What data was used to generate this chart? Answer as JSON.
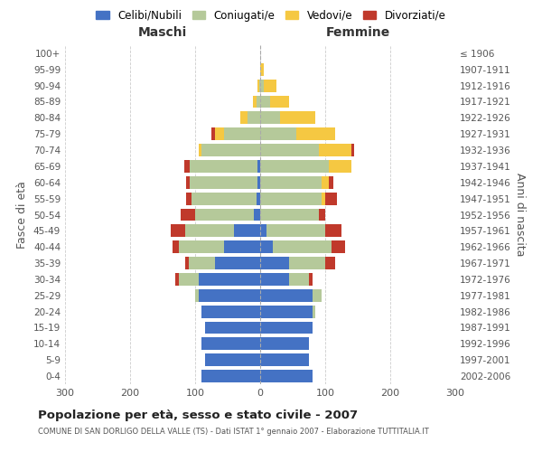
{
  "age_groups": [
    "0-4",
    "5-9",
    "10-14",
    "15-19",
    "20-24",
    "25-29",
    "30-34",
    "35-39",
    "40-44",
    "45-49",
    "50-54",
    "55-59",
    "60-64",
    "65-69",
    "70-74",
    "75-79",
    "80-84",
    "85-89",
    "90-94",
    "95-99",
    "100+"
  ],
  "birth_years": [
    "2002-2006",
    "1997-2001",
    "1992-1996",
    "1987-1991",
    "1982-1986",
    "1977-1981",
    "1972-1976",
    "1967-1971",
    "1962-1966",
    "1957-1961",
    "1952-1956",
    "1947-1951",
    "1942-1946",
    "1937-1941",
    "1932-1936",
    "1927-1931",
    "1922-1926",
    "1917-1921",
    "1912-1916",
    "1907-1911",
    "≤ 1906"
  ],
  "colors": {
    "celibe": "#4472c4",
    "coniugato": "#b5c99a",
    "vedovo": "#f5c842",
    "divorziato": "#c0392b",
    "bg": "#ffffff",
    "grid": "#cccccc"
  },
  "maschi": {
    "celibe": [
      90,
      85,
      90,
      85,
      90,
      95,
      95,
      70,
      55,
      40,
      10,
      6,
      4,
      4,
      0,
      0,
      0,
      0,
      0,
      0,
      0
    ],
    "coniugato": [
      0,
      0,
      0,
      0,
      0,
      5,
      30,
      40,
      70,
      75,
      90,
      100,
      105,
      105,
      90,
      55,
      20,
      6,
      2,
      0,
      0
    ],
    "vedovo": [
      0,
      0,
      0,
      0,
      0,
      0,
      0,
      0,
      0,
      0,
      0,
      0,
      0,
      0,
      5,
      15,
      10,
      5,
      2,
      0,
      0
    ],
    "divorziato": [
      0,
      0,
      0,
      0,
      0,
      0,
      5,
      5,
      10,
      22,
      22,
      8,
      5,
      7,
      0,
      5,
      0,
      0,
      0,
      0,
      0
    ]
  },
  "femmine": {
    "nubile": [
      80,
      75,
      75,
      80,
      80,
      80,
      45,
      45,
      20,
      10,
      0,
      0,
      0,
      0,
      0,
      0,
      0,
      0,
      0,
      0,
      0
    ],
    "coniugata": [
      0,
      0,
      0,
      0,
      5,
      15,
      30,
      55,
      90,
      90,
      90,
      95,
      95,
      105,
      90,
      55,
      30,
      15,
      5,
      0,
      0
    ],
    "vedova": [
      0,
      0,
      0,
      0,
      0,
      0,
      0,
      0,
      0,
      0,
      0,
      5,
      10,
      35,
      50,
      60,
      55,
      30,
      20,
      5,
      0
    ],
    "divorziata": [
      0,
      0,
      0,
      0,
      0,
      0,
      5,
      15,
      20,
      25,
      10,
      18,
      8,
      0,
      5,
      0,
      0,
      0,
      0,
      0,
      0
    ]
  },
  "xlim": 300,
  "title": "Popolazione per età, sesso e stato civile - 2007",
  "subtitle": "COMUNE DI SAN DORLIGO DELLA VALLE (TS) - Dati ISTAT 1° gennaio 2007 - Elaborazione TUTTITALIA.IT",
  "ylabel_left": "Fasce di età",
  "ylabel_right": "Anni di nascita",
  "xlabel_maschi": "Maschi",
  "xlabel_femmine": "Femmine",
  "legend_labels": [
    "Celibi/Nubili",
    "Coniugati/e",
    "Vedovi/e",
    "Divorziati/e"
  ]
}
